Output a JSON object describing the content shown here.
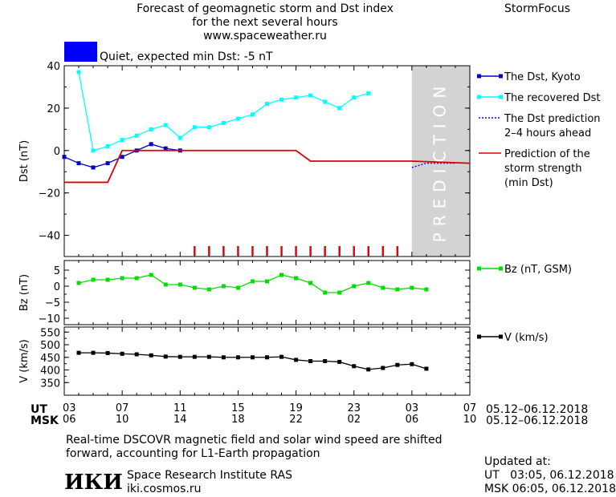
{
  "header": {
    "title_line1": "Forecast of geomagnetic storm and Dst index",
    "title_line2": "for the next several hours",
    "title_line3": "www.spaceweather.ru",
    "brand": "StormFocus",
    "status_text": "Quiet, expected min Dst: -5 nT",
    "status_color": "#0000ff"
  },
  "prediction_label": "PREDICTION",
  "time_axis": {
    "ut_label": "UT",
    "msk_label": "MSK",
    "ut_ticks": [
      "03",
      "07",
      "11",
      "15",
      "19",
      "23",
      "03",
      "07"
    ],
    "msk_ticks": [
      "06",
      "10",
      "14",
      "18",
      "22",
      "02",
      "06",
      "10"
    ],
    "date_range_ut": "05.12–06.12.2018",
    "date_range_msk": "05.12–06.12.2018"
  },
  "footer": {
    "note_line1": "Real-time DSCOVR magnetic field and solar wind speed are shifted",
    "note_line2": "forward, accounting for L1-Earth propagation",
    "logo": "ИКИ",
    "institute": "Space Research Institute RAS",
    "site": "iki.cosmos.ru",
    "updated_label": "Updated at:",
    "updated_ut": "UT   03:05, 06.12.2018",
    "updated_msk": "MSK 06:05, 06.12.2018"
  },
  "chart_data": [
    {
      "type": "line",
      "ylabel": "Dst (nT)",
      "ylim": [
        -50,
        40
      ],
      "yticks": [
        40,
        20,
        0,
        -20,
        -40
      ],
      "xlim": [
        0,
        28
      ],
      "prediction_start": 24,
      "grid": false,
      "legend_placement": "right",
      "series": [
        {
          "name": "The Dst, Kyoto",
          "color": "#0000cc",
          "marker": "square",
          "x": [
            0,
            1,
            2,
            3,
            4,
            5,
            6,
            7,
            8
          ],
          "y": [
            -3,
            -6,
            -8,
            -6,
            -3,
            0,
            3,
            1,
            0
          ]
        },
        {
          "name": "The recovered Dst",
          "color": "#00ffff",
          "marker": "square",
          "x": [
            1,
            2,
            3,
            4,
            5,
            6,
            7,
            8,
            9,
            10,
            11,
            12,
            13,
            14,
            15,
            16,
            17,
            18,
            19,
            20,
            21
          ],
          "y": [
            37,
            0,
            2,
            5,
            7,
            10,
            12,
            6,
            11,
            11,
            13,
            15,
            17,
            22,
            24,
            25,
            26,
            23,
            20,
            25,
            27
          ]
        },
        {
          "name": "The Dst prediction\n2–4 hours ahead",
          "color": "#0000ff",
          "marker": "none",
          "x": [
            24,
            25,
            26,
            27
          ],
          "y": [
            -8,
            -6,
            -6,
            -6
          ]
        },
        {
          "name": "Prediction of the\nstorm strength\n(min Dst)",
          "color": "#dd0000",
          "marker": "none",
          "x": [
            0,
            3,
            4,
            16,
            17,
            24,
            28
          ],
          "y": [
            -15,
            -15,
            0,
            0,
            -5,
            -5,
            -6
          ]
        }
      ],
      "storm_ticks_x": [
        9,
        10,
        11,
        12,
        13,
        14,
        15,
        16,
        17,
        18,
        19,
        20,
        21,
        22,
        23
      ]
    },
    {
      "type": "line",
      "ylabel": "Bz (nT)",
      "ylim": [
        -12,
        8
      ],
      "yticks": [
        5,
        0,
        -5,
        -10
      ],
      "xlim": [
        0,
        28
      ],
      "series": [
        {
          "name": "Bz (nT, GSM)",
          "color": "#00dd00",
          "marker": "square",
          "x": [
            1,
            2,
            3,
            4,
            5,
            6,
            7,
            8,
            9,
            10,
            11,
            12,
            13,
            14,
            15,
            16,
            17,
            18,
            19,
            20,
            21,
            22,
            23,
            24,
            25
          ],
          "y": [
            1,
            2,
            2,
            2.5,
            2.5,
            3.5,
            0.5,
            0.5,
            -0.5,
            -1,
            0,
            -0.5,
            1.5,
            1.5,
            3.5,
            2.5,
            1,
            -2,
            -2,
            0,
            1,
            -0.5,
            -1,
            -0.5,
            -1
          ]
        }
      ]
    },
    {
      "type": "line",
      "ylabel": "V (km/s)",
      "ylim": [
        300,
        570
      ],
      "yticks": [
        550,
        500,
        450,
        400,
        350
      ],
      "xlim": [
        0,
        28
      ],
      "series": [
        {
          "name": "V (km/s)",
          "color": "#000000",
          "marker": "square",
          "x": [
            1,
            2,
            3,
            4,
            5,
            6,
            7,
            8,
            9,
            10,
            11,
            12,
            13,
            14,
            15,
            16,
            17,
            18,
            19,
            20,
            21,
            22,
            23,
            24,
            25
          ],
          "y": [
            468,
            468,
            467,
            464,
            462,
            458,
            453,
            452,
            452,
            452,
            450,
            450,
            450,
            450,
            452,
            440,
            435,
            435,
            432,
            415,
            402,
            408,
            420,
            423,
            405
          ]
        }
      ]
    }
  ]
}
